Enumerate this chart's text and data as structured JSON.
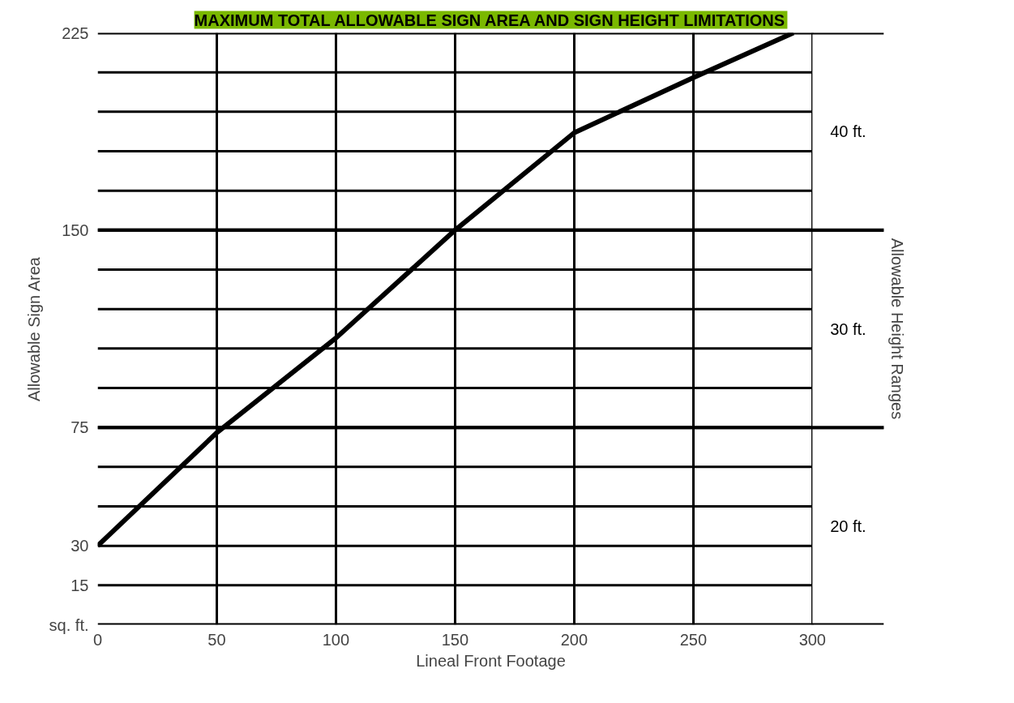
{
  "chart_data": {
    "type": "line",
    "title": "MAXIMUM TOTAL ALLOWABLE SIGN AREA AND SIGN HEIGHT LIMITATIONS",
    "xlabel": "Lineal Front Footage",
    "ylabel": "Allowable Sign Area",
    "y2label": "Allowable Height Ranges",
    "x": [
      0,
      50,
      100,
      150,
      200,
      250,
      292
    ],
    "series": [
      {
        "color": "#000000",
        "values": [
          30,
          73,
          109,
          150,
          187,
          208,
          225
        ]
      }
    ],
    "xlim": [
      0,
      330
    ],
    "xticks": [
      0,
      50,
      100,
      150,
      200,
      250,
      300
    ],
    "ylim": [
      0,
      225
    ],
    "yticks": [
      {
        "value": 0,
        "label": "sq. ft."
      },
      15,
      30,
      {
        "value": 45,
        "label": null
      },
      {
        "value": 60,
        "label": null
      },
      75,
      {
        "value": 90,
        "label": null
      },
      {
        "value": 105,
        "label": null
      },
      {
        "value": 120,
        "label": null
      },
      {
        "value": 135,
        "label": null
      },
      150,
      {
        "value": 165,
        "label": null
      },
      {
        "value": 180,
        "label": null
      },
      {
        "value": 195,
        "label": null
      },
      {
        "value": 210,
        "label": null
      },
      225
    ],
    "bands": [
      {
        "axis": "y",
        "from": 0,
        "to": 75,
        "label": "20 ft.",
        "color": "#ffffff"
      },
      {
        "axis": "y",
        "from": 75,
        "to": 150,
        "label": "30 ft.",
        "color": "#ffffff"
      },
      {
        "axis": "y",
        "from": 150,
        "to": 225,
        "label": "40 ft.",
        "color": "#ffffff"
      }
    ],
    "grid": true,
    "marker": "none",
    "line_style": "solid"
  }
}
